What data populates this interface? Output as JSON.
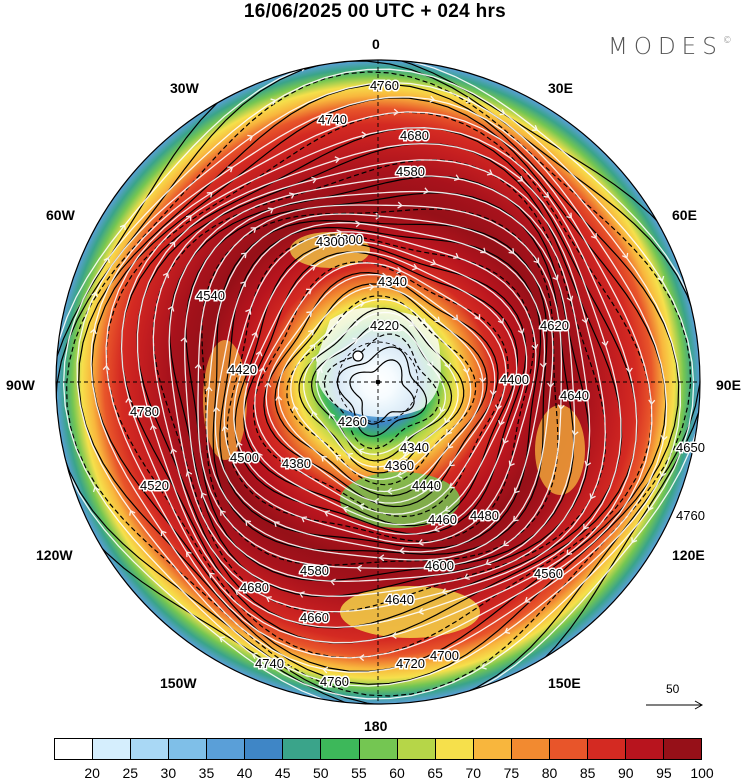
{
  "title": "16/06/2025  00 UTC  + 024 hrs",
  "brand": "MODES",
  "brand_mark": "©",
  "longitude_labels": {
    "n0": "0",
    "e30": "30E",
    "e60": "60E",
    "e90": "90E",
    "e120": "120E",
    "e150": "150E",
    "s180": "180",
    "w150": "150W",
    "w120": "120W",
    "w90": "90W",
    "w60": "60W",
    "w30": "30W"
  },
  "reference_vector": {
    "label": "50"
  },
  "contour_labels": [
    "4760",
    "4740",
    "4680",
    "4580",
    "4300",
    "4340",
    "4300",
    "4220",
    "4260",
    "4420",
    "4400",
    "4380",
    "4360",
    "4340",
    "4440",
    "4460",
    "4500",
    "4480",
    "4580",
    "4560",
    "4600",
    "4640",
    "4660",
    "4680",
    "4700",
    "4720",
    "4740",
    "4760",
    "4620",
    "4640",
    "4650",
    "4760",
    "4780",
    "4540",
    "4520"
  ],
  "colorbar": {
    "ticks": [
      "20",
      "25",
      "30",
      "35",
      "40",
      "45",
      "50",
      "55",
      "60",
      "65",
      "70",
      "75",
      "80",
      "85",
      "90",
      "95",
      "100"
    ],
    "colors": [
      "#ffffff",
      "#d5eefd",
      "#a9d8f5",
      "#7fbfe8",
      "#5a9fd8",
      "#3f86c6",
      "#3aa48a",
      "#3db85a",
      "#74c652",
      "#b6d648",
      "#f6e04b",
      "#f8b63d",
      "#f28a30",
      "#e8552a",
      "#d42a22",
      "#b8141e",
      "#961018"
    ]
  }
}
